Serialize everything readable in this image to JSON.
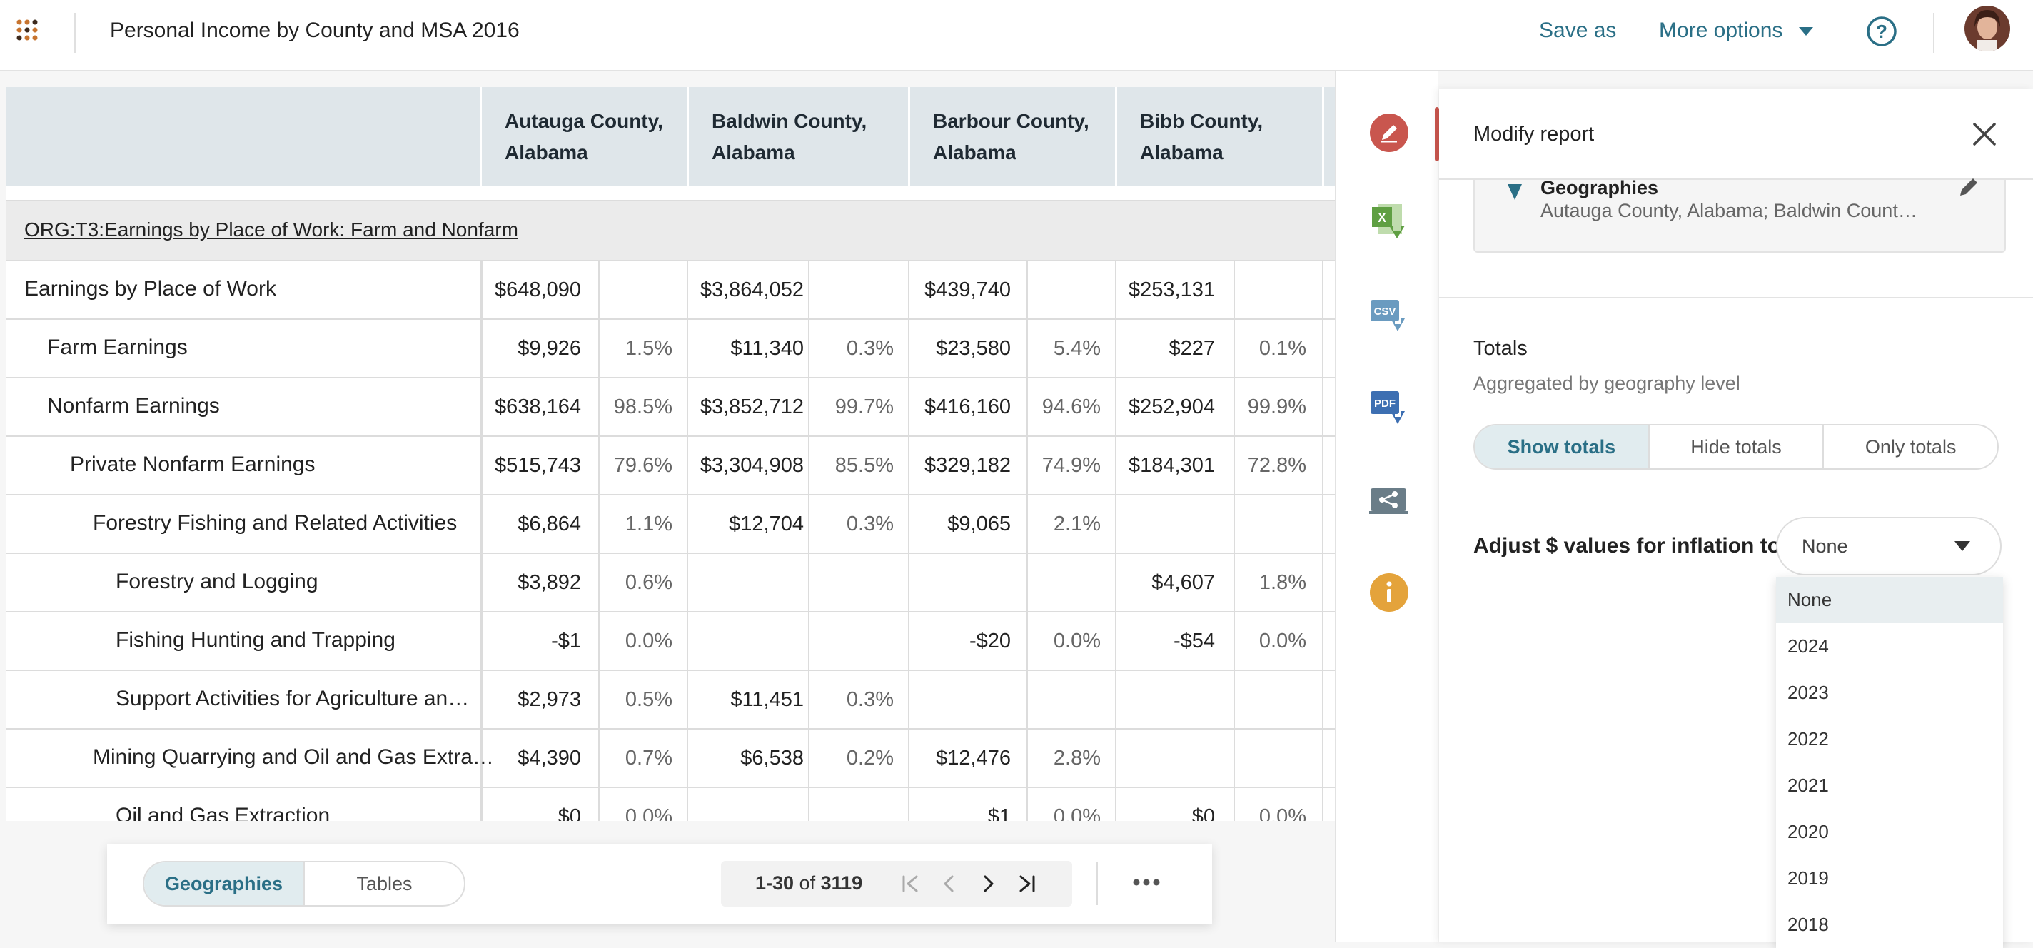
{
  "header": {
    "title": "Personal Income by County and MSA 2016",
    "save_as": "Save as",
    "more_options": "More options"
  },
  "table": {
    "columns": [
      "Autauga County, Alabama",
      "Baldwin County, Alabama",
      "Barbour County, Alabama",
      "Bibb County, Alabama"
    ],
    "section_title": "ORG:T3:Earnings by Place of Work: Farm and Nonfarm",
    "rows": [
      {
        "label": "Earnings by Place of Work",
        "cells": [
          "$648,090",
          "",
          "$3,864,052",
          "",
          "$439,740",
          "",
          "$253,131",
          ""
        ]
      },
      {
        "label": "Farm Earnings",
        "cells": [
          "$9,926",
          "1.5%",
          "$11,340",
          "0.3%",
          "$23,580",
          "5.4%",
          "$227",
          "0.1%"
        ]
      },
      {
        "label": "Nonfarm Earnings",
        "cells": [
          "$638,164",
          "98.5%",
          "$3,852,712",
          "99.7%",
          "$416,160",
          "94.6%",
          "$252,904",
          "99.9%"
        ]
      },
      {
        "label": "Private Nonfarm Earnings",
        "cells": [
          "$515,743",
          "79.6%",
          "$3,304,908",
          "85.5%",
          "$329,182",
          "74.9%",
          "$184,301",
          "72.8%"
        ]
      },
      {
        "label": "Forestry Fishing and Related Activities",
        "cells": [
          "$6,864",
          "1.1%",
          "$12,704",
          "0.3%",
          "$9,065",
          "2.1%",
          "",
          ""
        ]
      },
      {
        "label": "Forestry and Logging",
        "cells": [
          "$3,892",
          "0.6%",
          "",
          "",
          "",
          "",
          "$4,607",
          "1.8%"
        ]
      },
      {
        "label": "Fishing Hunting and Trapping",
        "cells": [
          "-$1",
          "0.0%",
          "",
          "",
          "-$20",
          "0.0%",
          "-$54",
          "0.0%"
        ]
      },
      {
        "label": "Support Activities for Agriculture an…",
        "cells": [
          "$2,973",
          "0.5%",
          "$11,451",
          "0.3%",
          "",
          "",
          "",
          ""
        ]
      },
      {
        "label": "Mining Quarrying and Oil and Gas Extra…",
        "cells": [
          "$4,390",
          "0.7%",
          "$6,538",
          "0.2%",
          "$12,476",
          "2.8%",
          "",
          ""
        ]
      },
      {
        "label": "Oil and Gas Extraction",
        "cells": [
          "$0",
          "0.0%",
          "",
          "",
          "$1",
          "0.0%",
          "$0",
          "0.0%"
        ]
      }
    ]
  },
  "panel": {
    "title": "Modify report",
    "geographies_label": "Geographies",
    "geographies_value": "Autauga County, Alabama; Baldwin Count…",
    "totals_title": "Totals",
    "totals_sub": "Aggregated by geography level",
    "totals_options": [
      "Show totals",
      "Hide totals",
      "Only totals"
    ],
    "inflation_label": "Adjust $ values for inflation to:",
    "inflation_selected": "None",
    "inflation_options": [
      "None",
      "2024",
      "2023",
      "2022",
      "2021",
      "2020",
      "2019",
      "2018"
    ]
  },
  "bottom": {
    "views": [
      "Geographies",
      "Tables"
    ],
    "range": "1-30",
    "of": "of",
    "total": "3119"
  },
  "icons": [
    "pencil-icon",
    "excel-icon",
    "csv-icon",
    "pdf-icon",
    "share-icon",
    "info-icon"
  ],
  "colors": {
    "accent": "#2a6f86",
    "active_tab": "#c9564e",
    "header_bg": "#dfe6ea"
  }
}
